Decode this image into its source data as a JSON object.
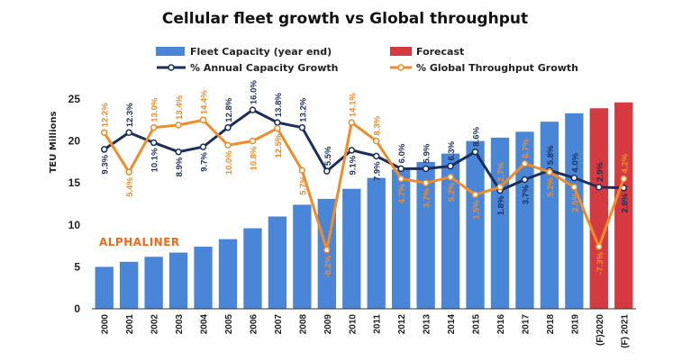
{
  "colors": {
    "fleet": "#4a86d8",
    "forecast": "#d43a3f",
    "capacity_growth": "#1b2f5c",
    "throughput_growth": "#f28c28",
    "brand": "#ef6a1f"
  },
  "brand_text": "ALPHALINER",
  "chart_data": {
    "type": "bar",
    "title": "Cellular fleet growth vs Global throughput",
    "ylabel": "TEU Millions",
    "xlabel": "",
    "ylim": [
      0,
      25
    ],
    "yticks": [
      0,
      5,
      10,
      15,
      20,
      25
    ],
    "grid": false,
    "legend_position": "top",
    "categories": [
      "2000",
      "2001",
      "2002",
      "2003",
      "2004",
      "2005",
      "2006",
      "2007",
      "2008",
      "2009",
      "2010",
      "2011",
      "2012",
      "2013",
      "2014",
      "2015",
      "2016",
      "2017",
      "2018",
      "2019",
      "(F)2020",
      "(F) 2021"
    ],
    "legend": {
      "fleet": "Fleet Capacity (year end)",
      "forecast": "Forecast",
      "capacity_growth": "% Annual Capacity Growth",
      "throughput_growth": "% Global Throughput Growth"
    },
    "series": [
      {
        "name": "Fleet Capacity (year end)",
        "type": "bar",
        "values": [
          5.0,
          5.6,
          6.2,
          6.7,
          7.4,
          8.3,
          9.6,
          11.0,
          12.4,
          13.1,
          14.3,
          15.6,
          16.6,
          17.5,
          18.5,
          20.0,
          20.4,
          21.1,
          22.3,
          23.3,
          null,
          null
        ]
      },
      {
        "name": "Forecast",
        "type": "bar",
        "values": [
          null,
          null,
          null,
          null,
          null,
          null,
          null,
          null,
          null,
          null,
          null,
          null,
          null,
          null,
          null,
          null,
          null,
          null,
          null,
          null,
          23.9,
          24.6
        ]
      },
      {
        "name": "% Annual Capacity Growth",
        "type": "line",
        "axis_values": [
          19.0,
          21.0,
          19.8,
          18.7,
          19.3,
          21.6,
          23.7,
          22.2,
          21.6,
          16.4,
          18.9,
          18.2,
          16.7,
          16.7,
          17.0,
          18.7,
          14.1,
          15.4,
          16.5,
          15.6,
          14.5,
          14.4
        ],
        "labels": [
          "9.3%",
          "12.3%",
          "10.1%",
          "8.9%",
          "9.7%",
          "12.8%",
          "16.0%",
          "13.8%",
          "13.2%",
          "5.5%",
          "9.1%",
          "7.9%",
          "6.0%",
          "5.9%",
          "6.3%",
          "8.6%",
          "1.8%",
          "3.7%",
          "5.8%",
          "4.0%",
          "2.9%",
          "2.8%"
        ]
      },
      {
        "name": "% Global Throughput Growth",
        "type": "line",
        "axis_values": [
          21.0,
          16.3,
          21.6,
          21.9,
          22.5,
          19.5,
          20.0,
          21.5,
          16.5,
          7.0,
          22.2,
          20.0,
          15.5,
          15.0,
          15.7,
          13.6,
          14.5,
          17.3,
          16.3,
          14.5,
          7.4,
          15.5
        ],
        "labels": [
          "12.2%",
          "5.4%",
          "13.0%",
          "13.4%",
          "14.4%",
          "10.0%",
          "10.8%",
          "12.5%",
          "5.7%",
          "-8.2%",
          "14.1%",
          "8.3%",
          "4.7%",
          "3.7%",
          "5.2%",
          "1.5%",
          "2.7%",
          "6.7%",
          "5.2%",
          "2.5%",
          "-7.3%",
          "4.2%"
        ]
      }
    ]
  }
}
